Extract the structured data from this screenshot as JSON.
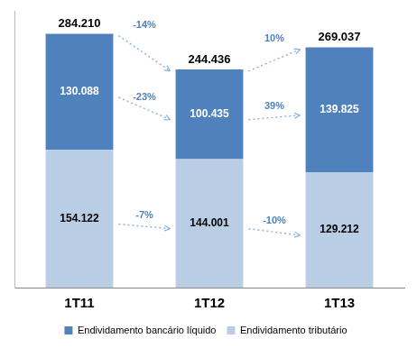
{
  "chart_data": {
    "type": "bar",
    "stacked": true,
    "categories": [
      "1T11",
      "1T12",
      "1T13"
    ],
    "series": [
      {
        "name": "Endividamento tributário",
        "color": "#b9cde5",
        "values": [
          154122,
          144001,
          129212
        ],
        "value_labels": [
          "154.122",
          "144.001",
          "129.212"
        ],
        "changes": [
          {
            "value": -7,
            "label": "-7%"
          },
          {
            "value": -10,
            "label": "-10%"
          }
        ]
      },
      {
        "name": "Endividamento bancário líquido",
        "color": "#4f81bd",
        "values": [
          130088,
          100435,
          139825
        ],
        "value_labels": [
          "130.088",
          "100.435",
          "139.825"
        ],
        "changes": [
          {
            "value": -23,
            "label": "-23%"
          },
          {
            "value": 39,
            "label": "39%"
          }
        ]
      }
    ],
    "totals": [
      284210,
      244436,
      269037
    ],
    "total_labels": [
      "284.210",
      "244.436",
      "269.037"
    ],
    "total_changes": [
      {
        "value": -14,
        "label": "-14%"
      },
      {
        "value": 10,
        "label": "10%"
      }
    ],
    "ylim": [
      0,
      310000
    ],
    "data_labels": true,
    "tick_labels": "x",
    "grid": false,
    "legend": "bottom"
  }
}
